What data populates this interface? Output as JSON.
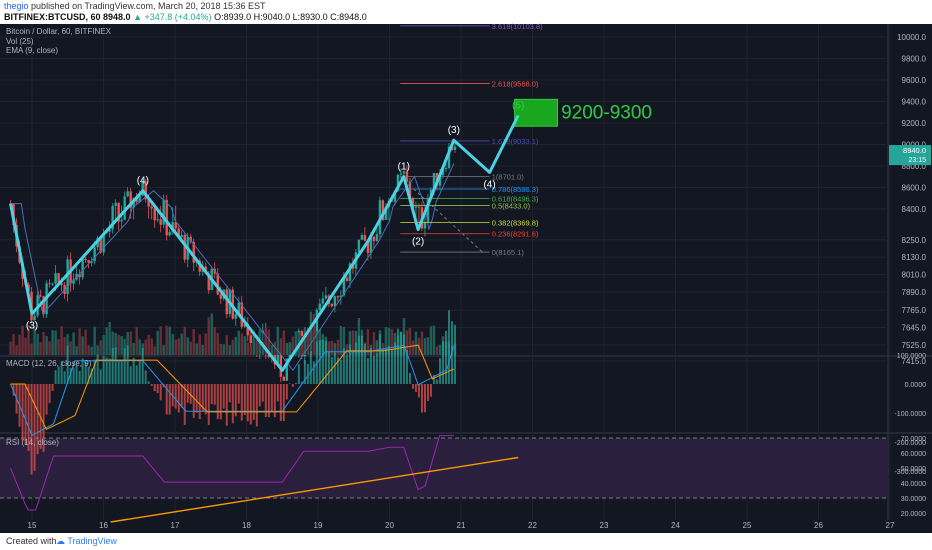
{
  "header": {
    "user": "thegio",
    "published": "published on TradingView.com, March 20, 2018 15:36 EST",
    "ticker": "BITFINEX:BTCUSD, 60",
    "last": "8948.0",
    "change": "+347.8 (+4.04%)",
    "ohlc": "O:8939.0 H:9040.0 L:8930.0 C:8948.0"
  },
  "legend": {
    "title": "Bitcoin / Dollar, 60, BITFINEX",
    "vol": "Vol (25)",
    "ema": "EMA (9, close)",
    "macd": "MACD (12, 26, close, 9)",
    "rsi": "RSI (14, close)"
  },
  "footer": {
    "created": "Created with",
    "brand": "TradingView"
  },
  "colors": {
    "bg": "#131722",
    "wave": "#4dd0e1",
    "up": "#26a69a",
    "down": "#ef5350",
    "target": "#19a71f",
    "fib": "#787b86"
  },
  "chart_data": [
    {
      "type": "line",
      "name": "price",
      "x_ticks": [
        "15",
        "16",
        "17",
        "18",
        "19",
        "20",
        "21",
        "22",
        "23",
        "24",
        "25",
        "26",
        "27"
      ],
      "y_ticks": [
        "10000.0",
        "9800.0",
        "9600.0",
        "9400.0",
        "9200.0",
        "9000.0",
        "8800.0",
        "8600.0",
        "8400.0",
        "8250.0",
        "8130.0",
        "8010.0",
        "7890.0",
        "7765.0",
        "7645.0",
        "7525.0",
        "7415.0"
      ],
      "price_box": [
        "8940.0",
        "23:15"
      ],
      "elliott_waves": [
        {
          "x": 14.7,
          "y": 8450
        },
        {
          "x": 15.0,
          "y": 7740,
          "label": "(3)"
        },
        {
          "x": 16.55,
          "y": 8570,
          "label": "(4)"
        },
        {
          "x": 18.5,
          "y": 7350
        },
        {
          "x": 19.7,
          "y": 8240
        },
        {
          "x": 20.2,
          "y": 8701,
          "label": "(1)"
        },
        {
          "x": 20.4,
          "y": 8320,
          "label": "(2)"
        },
        {
          "x": 20.9,
          "y": 9040,
          "label": "(3)"
        },
        {
          "x": 21.4,
          "y": 8740,
          "label": "(4)"
        },
        {
          "x": 21.8,
          "y": 9270,
          "label": "(5)"
        }
      ],
      "target": {
        "label": "9200-9300",
        "from": 9170,
        "to": 9420
      },
      "fib_levels": [
        {
          "label": "3.618(10103.8)",
          "value": 10103.8
        },
        {
          "label": "2.618(9568.0)",
          "value": 9568
        },
        {
          "label": "1.618(9033.1)",
          "value": 9033.1
        },
        {
          "label": "1(8701.0)",
          "value": 8701
        },
        {
          "label": "0.786(8586.3)",
          "value": 8586.3
        },
        {
          "label": "0.618(8496.3)",
          "value": 8496.3
        },
        {
          "label": "0.5(8433.0)",
          "value": 8433
        },
        {
          "label": "0.382(8369.8)",
          "value": 8369.8
        },
        {
          "label": "0.236(8291.6)",
          "value": 8291.6
        },
        {
          "label": "0(8165.1)",
          "value": 8165.1
        }
      ]
    },
    {
      "type": "line",
      "name": "MACD",
      "y_ticks": [
        "100.0000",
        "0.0000",
        "-100.0000",
        "-200.0000",
        "-300.0000"
      ]
    },
    {
      "type": "line",
      "name": "RSI",
      "y_ticks": [
        "70.0000",
        "60.0000",
        "50.0000",
        "40.0000",
        "30.0000",
        "20.0000"
      ]
    }
  ]
}
